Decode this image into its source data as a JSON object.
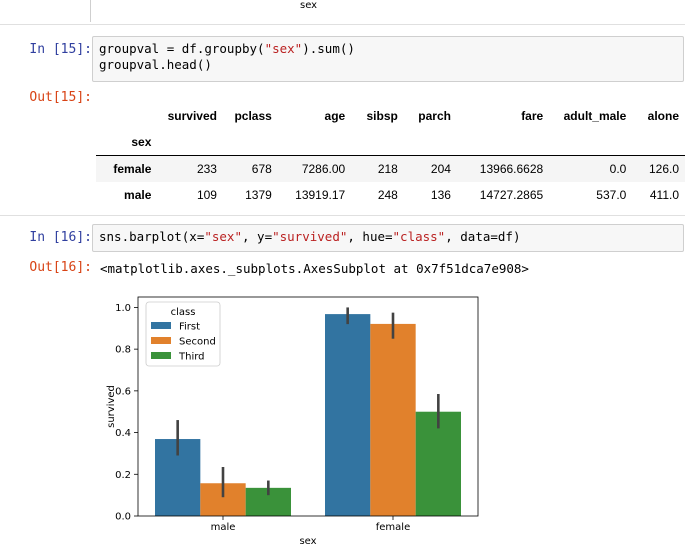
{
  "prev_output": {
    "xlabel": "sex"
  },
  "cell15": {
    "in_prompt": "In [15]:",
    "code_lines": [
      [
        {
          "t": "groupval = df.groupby(",
          "c": "p"
        },
        {
          "t": "\"sex\"",
          "c": "s"
        },
        {
          "t": ").sum()",
          "c": "p"
        }
      ],
      [
        {
          "t": "groupval.head()",
          "c": "p"
        }
      ]
    ],
    "out_prompt": "Out[15]:",
    "table": {
      "columns": [
        "survived",
        "pclass",
        "age",
        "sibsp",
        "parch",
        "fare",
        "adult_male",
        "alone"
      ],
      "index_name": "sex",
      "rows": [
        {
          "index": "female",
          "values": [
            "233",
            "678",
            "7286.00",
            "218",
            "204",
            "13966.6628",
            "0.0",
            "126.0"
          ]
        },
        {
          "index": "male",
          "values": [
            "109",
            "1379",
            "13919.17",
            "248",
            "136",
            "14727.2865",
            "537.0",
            "411.0"
          ]
        }
      ]
    }
  },
  "cell16": {
    "in_prompt": "In [16]:",
    "code_lines": [
      [
        {
          "t": "sns.barplot(x=",
          "c": "p"
        },
        {
          "t": "\"sex\"",
          "c": "s"
        },
        {
          "t": ", y=",
          "c": "p"
        },
        {
          "t": "\"survived\"",
          "c": "s"
        },
        {
          "t": ", hue=",
          "c": "p"
        },
        {
          "t": "\"class\"",
          "c": "s"
        },
        {
          "t": ", data=df)",
          "c": "p"
        }
      ]
    ],
    "out_prompt": "Out[16]:",
    "out_text": "<matplotlib.axes._subplots.AxesSubplot at 0x7f51dca7e908>"
  },
  "chart_data": {
    "type": "bar",
    "categories": [
      "male",
      "female"
    ],
    "xlabel": "sex",
    "ylabel": "survived",
    "ylim": [
      0,
      1.05
    ],
    "yticks": [
      "0.0",
      "0.2",
      "0.4",
      "0.6",
      "0.8",
      "1.0"
    ],
    "legend": {
      "title": "class",
      "placement": "top-left"
    },
    "series": [
      {
        "name": "First",
        "color": "#3274a1",
        "values": [
          0.369,
          0.968
        ],
        "ci": [
          [
            0.29,
            0.46
          ],
          [
            0.92,
            1.0
          ]
        ]
      },
      {
        "name": "Second",
        "color": "#e1812c",
        "values": [
          0.157,
          0.921
        ],
        "ci": [
          [
            0.09,
            0.235
          ],
          [
            0.85,
            0.975
          ]
        ]
      },
      {
        "name": "Third",
        "color": "#3a923a",
        "values": [
          0.135,
          0.5
        ],
        "ci": [
          [
            0.1,
            0.17
          ],
          [
            0.42,
            0.585
          ]
        ]
      }
    ]
  }
}
